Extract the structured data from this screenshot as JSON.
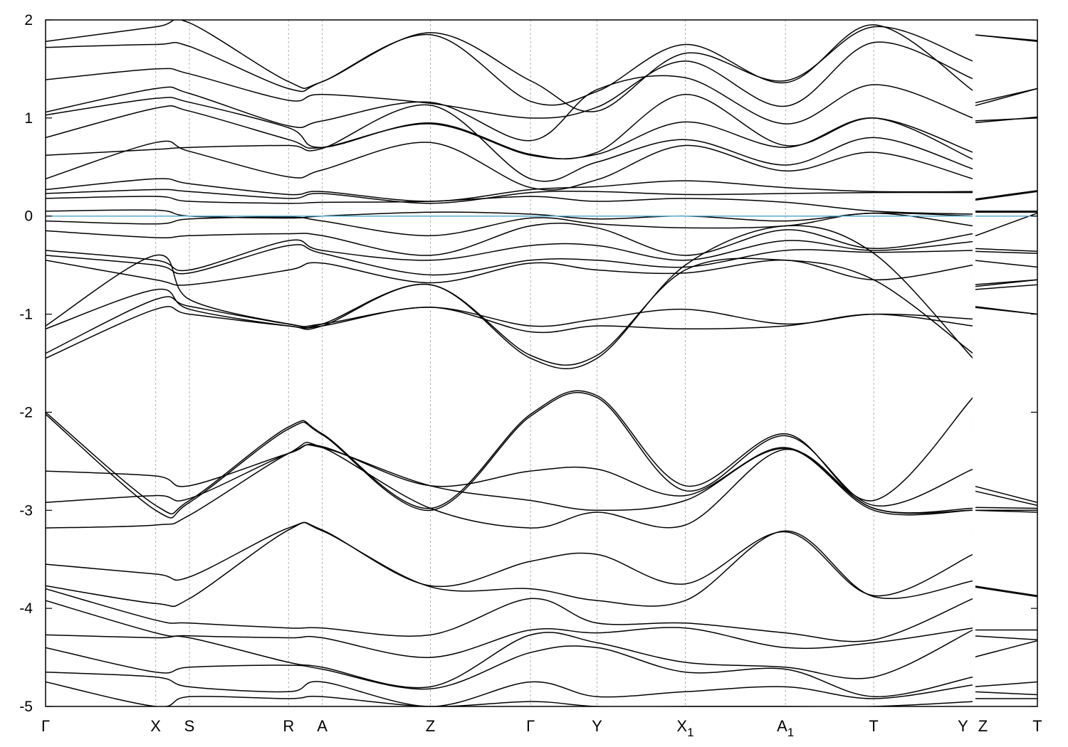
{
  "chart_data": {
    "type": "line",
    "title": "",
    "xlabel": "",
    "ylabel": "",
    "ylim": [
      -5,
      2
    ],
    "yticks": [
      2,
      1,
      0,
      -1,
      -2,
      -3,
      -4,
      -5
    ],
    "fermi_level": 0,
    "grid": "vertical dashed lines at k-points",
    "legend": "none",
    "colors": {
      "bands": "#000000",
      "fermi": "#5aaad2",
      "grid": "#b0b0b0"
    },
    "kpoints": [
      {
        "label": "Γ",
        "sub": "",
        "x": 0.0
      },
      {
        "label": "X",
        "sub": "",
        "x": 0.111
      },
      {
        "label": "S",
        "sub": "",
        "x": 0.145
      },
      {
        "label": "R",
        "sub": "",
        "x": 0.245
      },
      {
        "label": "A",
        "sub": "",
        "x": 0.279
      },
      {
        "label": "Z",
        "sub": "",
        "x": 0.388
      },
      {
        "label": "Γ",
        "sub": "",
        "x": 0.489
      },
      {
        "label": "Y",
        "sub": "",
        "x": 0.556
      },
      {
        "label": "X",
        "sub": "1",
        "x": 0.645
      },
      {
        "label": "A",
        "sub": "1",
        "x": 0.746
      },
      {
        "label": "T",
        "sub": "",
        "x": 0.835
      },
      {
        "label": "Y",
        "sub": "",
        "x": 0.935
      },
      {
        "label": "Z",
        "sub": "",
        "x": 0.935
      },
      {
        "label": "T",
        "sub": "",
        "x": 1.0
      }
    ],
    "break_at": 0.935,
    "series_segment1_x": [
      0.0,
      0.111,
      0.145,
      0.245,
      0.279,
      0.388,
      0.489,
      0.556,
      0.645,
      0.746,
      0.835,
      0.935
    ],
    "series_segment2_x": [
      0.935,
      1.0
    ],
    "series": [
      {
        "seg1": [
          1.78,
          1.93,
          1.97,
          1.37,
          1.37,
          1.87,
          1.38,
          1.07,
          1.66,
          1.38,
          1.93,
          1.58
        ],
        "seg2": [
          1.85,
          1.78
        ]
      },
      {
        "seg1": [
          1.72,
          1.75,
          1.73,
          1.3,
          1.37,
          1.85,
          1.17,
          1.27,
          1.75,
          1.36,
          1.95,
          1.28
        ],
        "seg2": [
          1.85,
          1.79
        ]
      },
      {
        "seg1": [
          1.39,
          1.5,
          1.45,
          1.18,
          1.24,
          1.15,
          1.0,
          1.11,
          1.58,
          1.12,
          1.77,
          1.4
        ],
        "seg2": [
          1.12,
          1.3
        ]
      },
      {
        "seg1": [
          1.06,
          1.3,
          1.25,
          0.92,
          0.97,
          1.16,
          0.77,
          1.29,
          1.41,
          0.94,
          1.34,
          1.0
        ],
        "seg2": [
          1.15,
          1.3
        ]
      },
      {
        "seg1": [
          1.03,
          1.2,
          1.16,
          0.9,
          0.7,
          0.95,
          0.63,
          0.65,
          1.24,
          0.72,
          1.0,
          0.65
        ],
        "seg2": [
          0.97,
          1.0
        ]
      },
      {
        "seg1": [
          0.8,
          1.1,
          1.07,
          0.78,
          0.7,
          0.94,
          0.62,
          0.63,
          0.96,
          0.7,
          1.0,
          0.58
        ],
        "seg2": [
          0.95,
          1.01
        ]
      },
      {
        "seg1": [
          0.62,
          0.68,
          0.7,
          0.72,
          0.69,
          1.13,
          0.38,
          0.55,
          0.78,
          0.52,
          0.8,
          0.48
        ],
        "seg2": [
          0.0,
          0.0
        ]
      },
      {
        "seg1": [
          0.38,
          0.75,
          0.66,
          0.4,
          0.47,
          0.75,
          0.29,
          0.37,
          0.72,
          0.46,
          0.65,
          0.38
        ],
        "seg2": [
          0.0,
          0.0
        ]
      },
      {
        "seg1": [
          0.27,
          0.38,
          0.33,
          0.22,
          0.25,
          0.15,
          0.27,
          0.3,
          0.36,
          0.29,
          0.25,
          0.25
        ],
        "seg2": [
          0.17,
          0.26
        ]
      },
      {
        "seg1": [
          0.23,
          0.27,
          0.25,
          0.18,
          0.23,
          0.13,
          0.24,
          0.25,
          0.22,
          0.23,
          0.24,
          0.24
        ],
        "seg2": [
          0.16,
          0.25
        ]
      },
      {
        "seg1": [
          0.18,
          0.2,
          0.15,
          0.13,
          0.14,
          0.15,
          0.2,
          0.15,
          0.18,
          0.14,
          0.05,
          0.02
        ],
        "seg2": [
          0.05,
          0.05
        ]
      },
      {
        "seg1": [
          0.05,
          0.06,
          0.0,
          -0.02,
          0.0,
          0.04,
          0.02,
          -0.03,
          0.0,
          -0.05,
          0.03,
          0.0
        ],
        "seg2": [
          0.04,
          0.04
        ]
      },
      {
        "seg1": [
          -0.05,
          -0.08,
          -0.03,
          -0.01,
          -0.05,
          -0.2,
          -0.02,
          -0.08,
          -0.12,
          -0.1,
          0.03,
          -0.1
        ],
        "seg2": [
          -0.21,
          0.03
        ]
      },
      {
        "seg1": [
          -0.15,
          -0.22,
          -0.2,
          -0.18,
          -0.2,
          -0.4,
          -0.1,
          -0.12,
          -0.4,
          -0.14,
          -0.33,
          -0.18
        ],
        "seg2": [
          -0.33,
          -0.36
        ]
      },
      {
        "seg1": [
          -0.35,
          -0.45,
          -0.55,
          -0.25,
          -0.35,
          -0.45,
          -0.3,
          -0.3,
          -0.45,
          -0.25,
          -0.35,
          -0.26
        ],
        "seg2": [
          -0.36,
          -0.38
        ]
      },
      {
        "seg1": [
          -0.4,
          -0.5,
          -0.58,
          -0.3,
          -0.38,
          -0.6,
          -0.45,
          -0.45,
          -0.52,
          -0.35,
          -0.37,
          -0.35
        ],
        "seg2": [
          -0.45,
          -0.52
        ]
      },
      {
        "seg1": [
          -0.45,
          -0.65,
          -0.7,
          -0.55,
          -0.48,
          -0.68,
          -0.48,
          -0.55,
          -0.58,
          -0.45,
          -0.65,
          -0.5
        ],
        "seg2": [
          -0.75,
          -0.7
        ]
      },
      {
        "seg1": [
          -1.12,
          -0.4,
          -0.85,
          -1.1,
          -1.1,
          -0.93,
          -1.12,
          -1.05,
          -0.95,
          -1.1,
          -1.0,
          -1.05
        ],
        "seg2": [
          -0.92,
          -1.0
        ]
      },
      {
        "seg1": [
          -1.15,
          -0.75,
          -0.95,
          -1.12,
          -1.12,
          -0.93,
          -1.18,
          -1.12,
          -1.15,
          -1.12,
          -1.0,
          -1.12
        ],
        "seg2": [
          -0.93,
          -1.0
        ]
      },
      {
        "seg1": [
          -1.4,
          -0.85,
          -0.92,
          -1.1,
          -1.1,
          -0.7,
          -1.42,
          -1.42,
          -0.55,
          -0.45,
          -0.65,
          -1.4
        ],
        "seg2": [
          -0.7,
          -0.65
        ]
      },
      {
        "seg1": [
          -1.45,
          -0.95,
          -1.0,
          -1.12,
          -1.12,
          -0.7,
          -1.45,
          -1.45,
          -0.5,
          -0.1,
          -0.38,
          -1.45
        ],
        "seg2": [
          -0.72,
          -0.65
        ]
      },
      {
        "seg1": [
          -2.0,
          -2.95,
          -2.9,
          -2.15,
          -2.22,
          -2.98,
          -2.02,
          -1.83,
          -2.75,
          -2.22,
          -2.9,
          -1.85
        ],
        "seg2": [
          -2.75,
          -2.92
        ]
      },
      {
        "seg1": [
          -2.02,
          -3.0,
          -2.92,
          -2.17,
          -2.23,
          -3.0,
          -2.04,
          -1.85,
          -2.8,
          -2.24,
          -2.95,
          -2.58
        ],
        "seg2": [
          -2.8,
          -2.95
        ]
      },
      {
        "seg1": [
          -2.6,
          -2.65,
          -2.75,
          -2.42,
          -2.35,
          -2.75,
          -2.6,
          -2.58,
          -2.85,
          -2.36,
          -2.98,
          -2.98
        ],
        "seg2": [
          -2.97,
          -2.98
        ]
      },
      {
        "seg1": [
          -2.92,
          -2.85,
          -2.88,
          -2.42,
          -2.36,
          -2.75,
          -2.9,
          -3.0,
          -2.9,
          -2.37,
          -3.0,
          -3.0
        ],
        "seg2": [
          -3.0,
          -3.0
        ]
      },
      {
        "seg1": [
          -3.18,
          -3.15,
          -3.05,
          -2.42,
          -2.36,
          -2.98,
          -3.18,
          -3.02,
          -3.15,
          -2.38,
          -2.98,
          -3.0
        ],
        "seg2": [
          -3.0,
          -3.02
        ]
      },
      {
        "seg1": [
          -3.55,
          -3.65,
          -3.68,
          -3.18,
          -3.2,
          -3.77,
          -3.52,
          -3.45,
          -3.75,
          -3.22,
          -3.87,
          -3.45
        ],
        "seg2": [
          -3.77,
          -3.87
        ]
      },
      {
        "seg1": [
          -3.77,
          -3.95,
          -3.9,
          -3.2,
          -3.21,
          -3.78,
          -3.8,
          -3.92,
          -3.92,
          -3.21,
          -3.88,
          -3.72
        ],
        "seg2": [
          -3.78,
          -3.88
        ]
      },
      {
        "seg1": [
          -3.8,
          -4.12,
          -4.15,
          -4.2,
          -4.2,
          -4.27,
          -3.9,
          -4.15,
          -4.15,
          -4.25,
          -4.32,
          -3.9
        ],
        "seg2": [
          -4.22,
          -4.22
        ]
      },
      {
        "seg1": [
          -3.92,
          -4.25,
          -4.28,
          -4.3,
          -4.3,
          -4.5,
          -4.22,
          -4.25,
          -4.2,
          -4.4,
          -4.35,
          -4.2
        ],
        "seg2": [
          -4.28,
          -4.32
        ]
      },
      {
        "seg1": [
          -4.27,
          -4.3,
          -4.3,
          -4.55,
          -4.6,
          -4.8,
          -4.27,
          -4.35,
          -4.55,
          -4.6,
          -4.7,
          -4.22
        ],
        "seg2": [
          -4.5,
          -4.33
        ]
      },
      {
        "seg1": [
          -4.4,
          -4.65,
          -4.6,
          -4.58,
          -4.62,
          -4.82,
          -4.45,
          -4.4,
          -4.65,
          -4.62,
          -4.9,
          -4.7
        ],
        "seg2": [
          -4.8,
          -4.75
        ]
      },
      {
        "seg1": [
          -4.65,
          -4.7,
          -4.8,
          -4.85,
          -4.75,
          -5.0,
          -4.75,
          -4.9,
          -4.85,
          -4.8,
          -4.92,
          -4.78
        ],
        "seg2": [
          -4.85,
          -4.88
        ]
      },
      {
        "seg1": [
          -4.75,
          -5.0,
          -4.9,
          -4.92,
          -4.9,
          -5.0,
          -4.95,
          -5.0,
          -5.0,
          -5.0,
          -5.0,
          -4.95
        ],
        "seg2": [
          -4.92,
          -4.92
        ]
      }
    ]
  }
}
